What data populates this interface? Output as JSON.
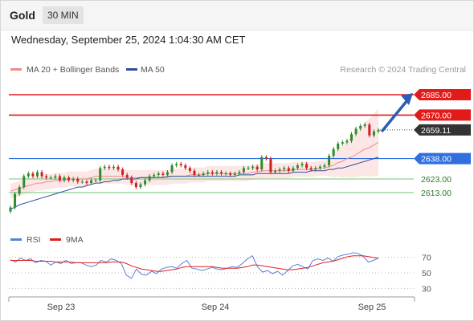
{
  "header": {
    "symbol": "Gold",
    "timeframe": "30 MIN",
    "datetime": "Wednesday, September 25, 2024 1:04:30 AM CET"
  },
  "legend": {
    "ma20_label": "MA 20 + Bollinger Bands",
    "ma50_label": "MA 50",
    "ma20_color": "#f08a8a",
    "ma50_color": "#2d4f9e",
    "credit": "Research © 2024 Trading Central"
  },
  "rsi_legend": {
    "rsi_label": "RSI",
    "ma_label": "9MA",
    "rsi_color": "#5b7fd8",
    "ma_color": "#e02020"
  },
  "colors": {
    "resistance": "#e31a1a",
    "pivot": "#2f6fe0",
    "support": "#8fd08f",
    "support_text": "#2a7a2a",
    "current": "#333333",
    "up_candle": "#2e8b2e",
    "down_candle": "#cc2020",
    "band_fill": "#fde2e2",
    "arrow": "#2b5db8"
  },
  "chart_data": {
    "type": "candlestick",
    "title": "Gold",
    "x_tick_labels": [
      "Sep 23",
      "Sep 24",
      "Sep 25"
    ],
    "ylim": [
      2597,
      2698
    ],
    "levels": [
      {
        "value": 2685.0,
        "label": "2685.00",
        "role": "resistance"
      },
      {
        "value": 2670.0,
        "label": "2670.00",
        "role": "resistance"
      },
      {
        "value": 2659.11,
        "label": "2659.11",
        "role": "current"
      },
      {
        "value": 2638.0,
        "label": "2638.00",
        "role": "pivot"
      },
      {
        "value": 2623.0,
        "label": "2623.00",
        "role": "support"
      },
      {
        "value": 2613.0,
        "label": "2613.00",
        "role": "support"
      }
    ],
    "close_series": [
      2602,
      2612,
      2617,
      2625,
      2627,
      2625,
      2628,
      2625,
      2624,
      2624,
      2625,
      2622,
      2624,
      2622,
      2623,
      2621,
      2621,
      2620,
      2622,
      2622,
      2631,
      2632,
      2631,
      2632,
      2630,
      2626,
      2624,
      2620,
      2617,
      2619,
      2622,
      2625,
      2626,
      2627,
      2626,
      2628,
      2633,
      2634,
      2633,
      2631,
      2629,
      2626,
      2626,
      2627,
      2628,
      2627,
      2628,
      2627,
      2627,
      2626,
      2627,
      2628,
      2631,
      2631,
      2632,
      2630,
      2639,
      2638,
      2628,
      2629,
      2630,
      2631,
      2629,
      2631,
      2633,
      2634,
      2631,
      2630,
      2631,
      2632,
      2633,
      2640,
      2645,
      2649,
      2650,
      2651,
      2656,
      2660,
      2662,
      2663,
      2655,
      2658,
      2659
    ],
    "ma20_series": [
      2614,
      2615,
      2616,
      2617,
      2618,
      2619,
      2620,
      2620,
      2621,
      2621,
      2622,
      2622,
      2622,
      2623,
      2623,
      2623,
      2623,
      2623,
      2624,
      2625,
      2625,
      2625,
      2625,
      2625,
      2625,
      2625,
      2624,
      2624,
      2624,
      2624,
      2624,
      2624,
      2624,
      2624,
      2624,
      2624,
      2625,
      2625,
      2625,
      2625,
      2626,
      2626,
      2626,
      2626,
      2627,
      2627,
      2627,
      2627,
      2627,
      2627,
      2627,
      2627,
      2627,
      2627,
      2628,
      2628,
      2629,
      2629,
      2629,
      2629,
      2629,
      2629,
      2629,
      2630,
      2630,
      2630,
      2630,
      2630,
      2630,
      2631,
      2631,
      2632,
      2633,
      2635,
      2636,
      2638,
      2639,
      2641,
      2643,
      2645,
      2646,
      2648,
      2650
    ],
    "ma50_series": [
      2601,
      2602,
      2604,
      2605,
      2606,
      2607,
      2608,
      2609,
      2610,
      2611,
      2612,
      2613,
      2614,
      2615,
      2616,
      2617,
      2617,
      2618,
      2619,
      2620,
      2620,
      2621,
      2621,
      2622,
      2622,
      2623,
      2623,
      2623,
      2623,
      2624,
      2624,
      2624,
      2624,
      2624,
      2624,
      2625,
      2625,
      2625,
      2625,
      2625,
      2625,
      2625,
      2625,
      2625,
      2625,
      2625,
      2625,
      2625,
      2625,
      2625,
      2625,
      2626,
      2626,
      2626,
      2626,
      2627,
      2627,
      2627,
      2627,
      2627,
      2627,
      2627,
      2627,
      2628,
      2628,
      2628,
      2628,
      2629,
      2629,
      2629,
      2629,
      2630,
      2630,
      2631,
      2631,
      2632,
      2633,
      2634,
      2635,
      2636,
      2637,
      2638,
      2639
    ],
    "forecast_arrow": {
      "from": 2659.11,
      "to": 2685.0
    },
    "rsi": {
      "ylim": [
        20,
        80
      ],
      "ticks": [
        70,
        50,
        30
      ],
      "rsi_series": [
        67,
        64,
        69,
        66,
        68,
        63,
        66,
        65,
        60,
        64,
        62,
        66,
        62,
        63,
        63,
        60,
        58,
        60,
        66,
        64,
        68,
        66,
        62,
        47,
        43,
        55,
        48,
        47,
        52,
        49,
        55,
        57,
        58,
        56,
        62,
        66,
        56,
        55,
        53,
        55,
        57,
        55,
        54,
        56,
        58,
        57,
        62,
        68,
        72,
        58,
        51,
        53,
        49,
        52,
        47,
        53,
        59,
        61,
        58,
        55,
        66,
        68,
        66,
        69,
        65,
        71,
        73,
        74,
        76,
        75,
        71,
        64,
        66,
        69
      ],
      "ma_series": [
        66,
        66,
        66,
        66,
        66,
        65,
        65,
        65,
        65,
        64,
        64,
        64,
        64,
        63,
        63,
        63,
        63,
        63,
        63,
        63,
        64,
        64,
        64,
        62,
        59,
        57,
        55,
        54,
        53,
        52,
        52,
        53,
        54,
        55,
        57,
        58,
        58,
        58,
        58,
        58,
        58,
        57,
        56,
        56,
        56,
        56,
        57,
        58,
        60,
        60,
        59,
        58,
        57,
        56,
        55,
        54,
        54,
        55,
        56,
        57,
        59,
        61,
        63,
        64,
        65,
        67,
        69,
        71,
        72,
        72,
        72,
        71,
        70,
        69
      ]
    }
  }
}
